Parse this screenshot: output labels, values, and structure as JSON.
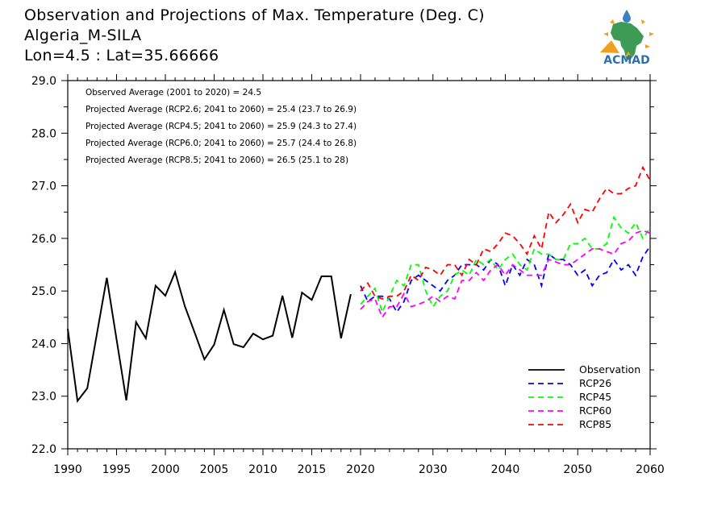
{
  "header": {
    "title_line1": "Observation and Projections of Max. Temperature (Deg. C)",
    "title_line2": "Algeria_M-SILA",
    "title_line3": "Lon=4.5 : Lat=35.66666"
  },
  "logo": {
    "text": "ACMAD"
  },
  "annotations": [
    "Observed Average (2001 to 2020) = 24.5",
    "Projected Average (RCP2.6; 2041 to 2060) = 25.4 (23.7 to 26.9)",
    "Projected Average (RCP4.5; 2041 to 2060) = 25.9 (24.3 to 27.4)",
    "Projected Average (RCP6.0; 2041 to 2060) = 25.7 (24.4 to 26.8)",
    "Projected Average (RCP8.5; 2041 to 2060) = 26.5 (25.1 to 28)"
  ],
  "chart_data": {
    "type": "line",
    "title": "Observation and Projections of Max. Temperature (Deg. C)",
    "xlabel": "",
    "ylabel": "",
    "ylim": [
      22.0,
      29.0
    ],
    "yticks": [
      "22.0",
      "23.0",
      "24.0",
      "25.0",
      "26.0",
      "27.0",
      "28.0",
      "29.0"
    ],
    "xticks": [
      "1990",
      "1995",
      "2000",
      "2005",
      "2010",
      "2015",
      "2020",
      "2030",
      "2040",
      "2050",
      "2060"
    ],
    "xaxis_segments": [
      [
        1990,
        2020
      ],
      [
        2020,
        2060
      ]
    ],
    "grid": false,
    "legend_placement": "bottom-right",
    "series": [
      {
        "name": "Observation",
        "color": "#000000",
        "style": "solid",
        "start_year": 1990,
        "values": [
          24.28,
          22.91,
          23.15,
          24.2,
          25.25,
          24.08,
          22.92,
          24.41,
          24.1,
          25.1,
          24.91,
          25.36,
          24.71,
          24.21,
          23.7,
          23.98,
          24.64,
          23.99,
          23.93,
          24.19,
          24.08,
          24.15,
          24.91,
          24.11,
          24.97,
          24.83,
          25.28,
          25.28,
          24.1,
          24.94
        ]
      },
      {
        "name": "RCP26",
        "color": "#0000ff",
        "style": "dashed",
        "start_year": 2020,
        "values": [
          25.1,
          24.8,
          24.9,
          24.9,
          24.85,
          24.6,
          24.8,
          25.2,
          25.3,
          25.2,
          25.1,
          25.0,
          25.2,
          25.3,
          25.5,
          25.5,
          25.5,
          25.4,
          25.6,
          25.5,
          25.1,
          25.5,
          25.3,
          25.6,
          25.5,
          25.1,
          25.7,
          25.6,
          25.6,
          25.5,
          25.3,
          25.4,
          25.1,
          25.3,
          25.35,
          25.6,
          25.4,
          25.5,
          25.3,
          25.65,
          25.85
        ]
      },
      {
        "name": "RCP45",
        "color": "#00ff00",
        "style": "dashed",
        "start_year": 2020,
        "values": [
          24.75,
          24.9,
          25.05,
          24.6,
          24.9,
          25.2,
          25.1,
          25.5,
          25.5,
          25.0,
          24.7,
          24.9,
          25.0,
          25.3,
          25.4,
          25.3,
          25.6,
          25.5,
          25.6,
          25.4,
          25.6,
          25.7,
          25.5,
          25.4,
          25.8,
          25.7,
          25.7,
          25.6,
          25.6,
          25.9,
          25.9,
          26.0,
          25.8,
          25.8,
          25.9,
          26.4,
          26.2,
          26.1,
          26.3,
          26.0,
          26.2
        ]
      },
      {
        "name": "RCP60",
        "color": "#ff00ff",
        "style": "dashed",
        "start_year": 2020,
        "values": [
          24.65,
          24.8,
          24.85,
          24.5,
          24.7,
          24.7,
          24.95,
          24.7,
          24.75,
          24.8,
          24.9,
          24.8,
          24.9,
          24.85,
          25.2,
          25.2,
          25.35,
          25.2,
          25.4,
          25.5,
          25.3,
          25.5,
          25.4,
          25.3,
          25.3,
          25.3,
          25.6,
          25.55,
          25.5,
          25.5,
          25.6,
          25.7,
          25.8,
          25.8,
          25.75,
          25.7,
          25.9,
          25.95,
          26.1,
          26.15,
          26.1
        ]
      },
      {
        "name": "RCP85",
        "color": "#ff0000",
        "style": "dashed",
        "start_year": 2020,
        "values": [
          25.0,
          25.15,
          24.9,
          24.85,
          24.9,
          24.9,
          25.0,
          25.3,
          25.2,
          25.45,
          25.4,
          25.3,
          25.5,
          25.5,
          25.3,
          25.6,
          25.5,
          25.8,
          25.75,
          25.9,
          26.1,
          26.05,
          25.9,
          25.7,
          26.05,
          25.8,
          26.5,
          26.3,
          26.45,
          26.65,
          26.3,
          26.55,
          26.5,
          26.75,
          26.95,
          26.85,
          26.85,
          26.95,
          27.0,
          27.35,
          27.1
        ]
      }
    ]
  }
}
